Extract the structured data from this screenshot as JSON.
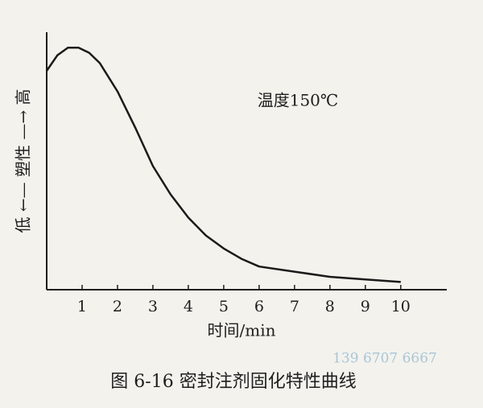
{
  "chart_data": {
    "type": "line",
    "x": [
      0,
      0.3,
      0.6,
      0.9,
      1.2,
      1.5,
      2,
      2.5,
      3,
      3.5,
      4,
      4.5,
      5,
      5.5,
      6,
      7,
      8,
      9,
      10
    ],
    "series": [
      {
        "color": "#1a1a1a",
        "values": [
          85,
          91,
          94,
          94,
          92,
          88,
          77,
          63,
          48,
          37,
          28,
          21,
          16,
          12,
          9,
          7,
          5,
          4,
          3
        ]
      }
    ],
    "xlim": [
      0,
      11.3
    ],
    "ylim": [
      0,
      100
    ],
    "xticks": [
      1,
      2,
      3,
      4,
      5,
      6,
      7,
      8,
      9,
      10
    ],
    "xlabel": "时间/min",
    "ylabel": "低 ←— 塑性 —→ 高",
    "annotation": "温度150℃",
    "caption": "图 6-16  密封注剂固化特性曲线",
    "watermark": "139 6707 6667"
  }
}
